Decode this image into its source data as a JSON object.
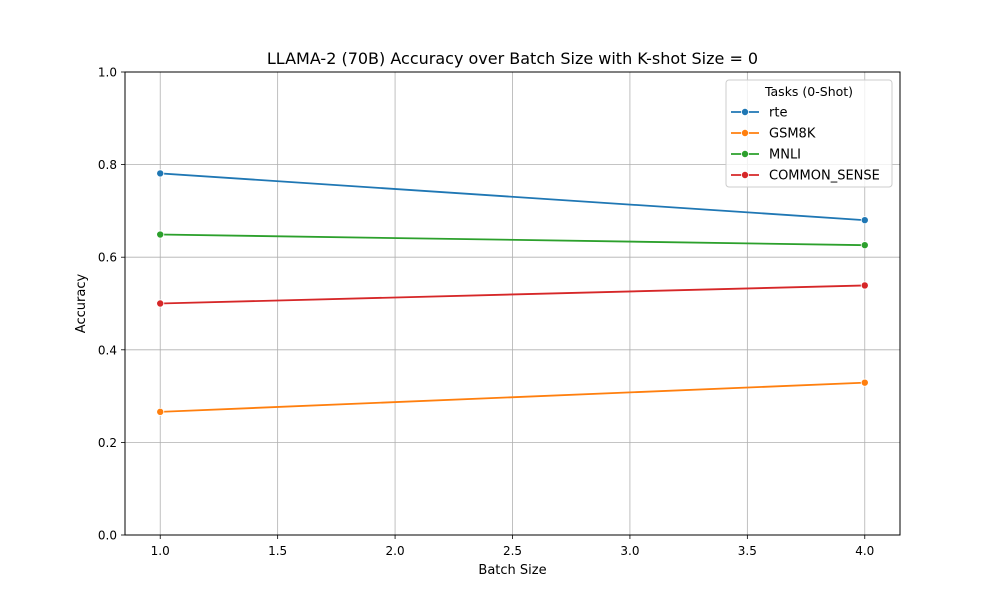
{
  "chart_data": {
    "type": "line",
    "title": "LLAMA-2 (70B) Accuracy over Batch Size with K-shot Size = 0",
    "xlabel": "Batch Size",
    "ylabel": "Accuracy",
    "xlim": [
      0.85,
      4.15
    ],
    "ylim": [
      0.0,
      1.0
    ],
    "x_ticks": [
      1.0,
      1.5,
      2.0,
      2.5,
      3.0,
      3.5,
      4.0
    ],
    "x_tick_labels": [
      "1.0",
      "1.5",
      "2.0",
      "2.5",
      "3.0",
      "3.5",
      "4.0"
    ],
    "y_ticks": [
      0.0,
      0.2,
      0.4,
      0.6,
      0.8,
      1.0
    ],
    "y_tick_labels": [
      "0.0",
      "0.2",
      "0.4",
      "0.6",
      "0.8",
      "1.0"
    ],
    "grid": true,
    "legend": {
      "title": "Tasks (0-Shot)",
      "placement": "top-right"
    },
    "x": [
      1.0,
      4.0
    ],
    "series": [
      {
        "name": "rte",
        "color": "#1f77b4",
        "values": [
          0.781,
          0.68
        ]
      },
      {
        "name": "GSM8K",
        "color": "#ff7f0e",
        "values": [
          0.266,
          0.329
        ]
      },
      {
        "name": "MNLI",
        "color": "#2ca02c",
        "values": [
          0.649,
          0.626
        ]
      },
      {
        "name": "COMMON_SENSE",
        "color": "#d62728",
        "values": [
          0.5,
          0.539
        ]
      }
    ]
  }
}
